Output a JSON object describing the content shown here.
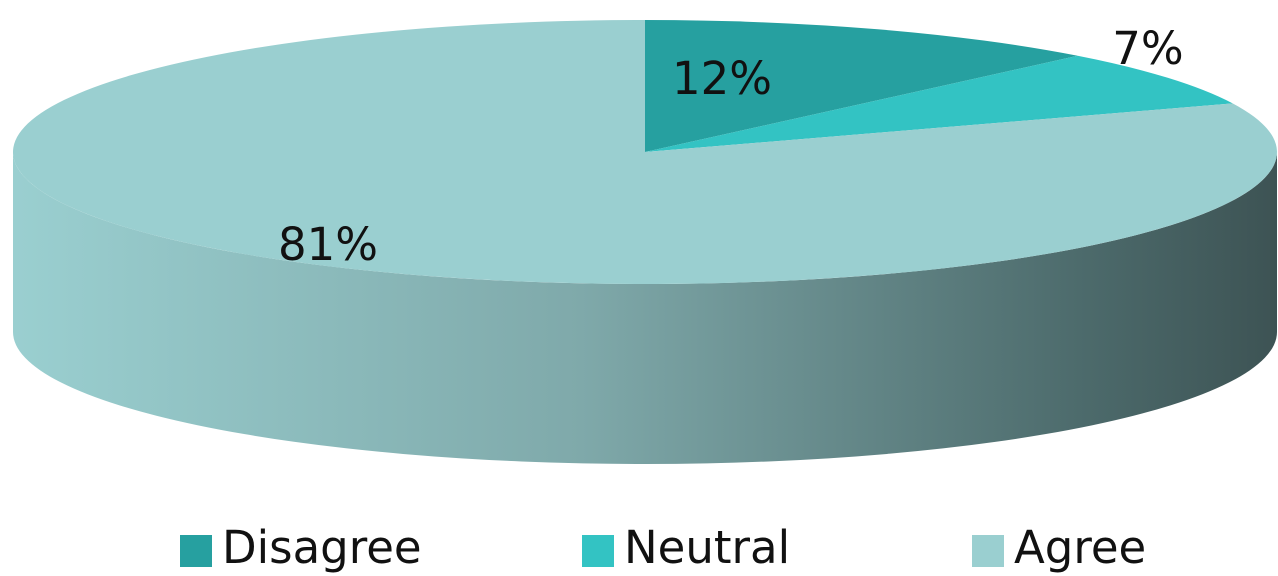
{
  "chart_data": {
    "type": "pie",
    "title": "",
    "slices": [
      {
        "label": "Disagree",
        "value": 12,
        "display": "12%",
        "color": "#26A0A0"
      },
      {
        "label": "Neutral",
        "value": 7,
        "display": "7%",
        "color": "#33C3C3"
      },
      {
        "label": "Agree",
        "value": 81,
        "display": "81%",
        "color": "#9ACFD0"
      }
    ],
    "legend_position": "bottom",
    "style": "3d"
  }
}
